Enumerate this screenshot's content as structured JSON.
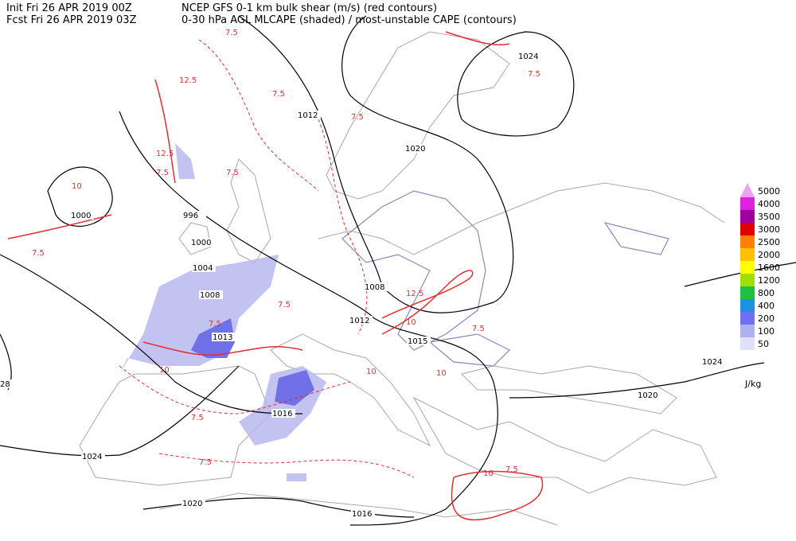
{
  "header": {
    "init": "Init  Fri 26 APR 2019 00Z",
    "fcst": "Fcst Fri 26 APR 2019 03Z",
    "title1": "NCEP GFS 0-1 km bulk shear (m/s) (red contours)",
    "title2": "0-30 hPa AGL MLCAPE (shaded) / most-unstable CAPE (contours)"
  },
  "legend": {
    "unit": "J/kg",
    "levels": [
      {
        "label": "5000",
        "color": "#f0a0f0"
      },
      {
        "label": "4000",
        "color": "#e020e0"
      },
      {
        "label": "3500",
        "color": "#a000a0"
      },
      {
        "label": "3000",
        "color": "#e00000"
      },
      {
        "label": "2500",
        "color": "#ff7f00"
      },
      {
        "label": "2000",
        "color": "#ffc000"
      },
      {
        "label": "1600",
        "color": "#ffff00"
      },
      {
        "label": "1200",
        "color": "#a0e000"
      },
      {
        "label": "800",
        "color": "#20c040"
      },
      {
        "label": "400",
        "color": "#2090e0"
      },
      {
        "label": "200",
        "color": "#7070f0"
      },
      {
        "label": "100",
        "color": "#b0b0f0"
      },
      {
        "label": "50",
        "color": "#e0e0f8"
      }
    ]
  },
  "isobar_labels": [
    "1012",
    "1020",
    "1024",
    "1000",
    "996",
    "1000",
    "1004",
    "1008",
    "1008",
    "1012",
    "1013",
    "1015",
    "1016",
    "1024",
    "1020",
    "1016",
    "1020",
    "1024",
    "28"
  ],
  "shear_labels": [
    "7.5",
    "12.5",
    "7.5",
    "7.5",
    "12.5",
    "7.5",
    "7.5",
    "10",
    "7.5",
    "7.5",
    "10",
    "7.5",
    "10",
    "7.5",
    "12.5",
    "10",
    "7.5",
    "7.5",
    "10",
    "7.5",
    "10",
    "7.5"
  ]
}
